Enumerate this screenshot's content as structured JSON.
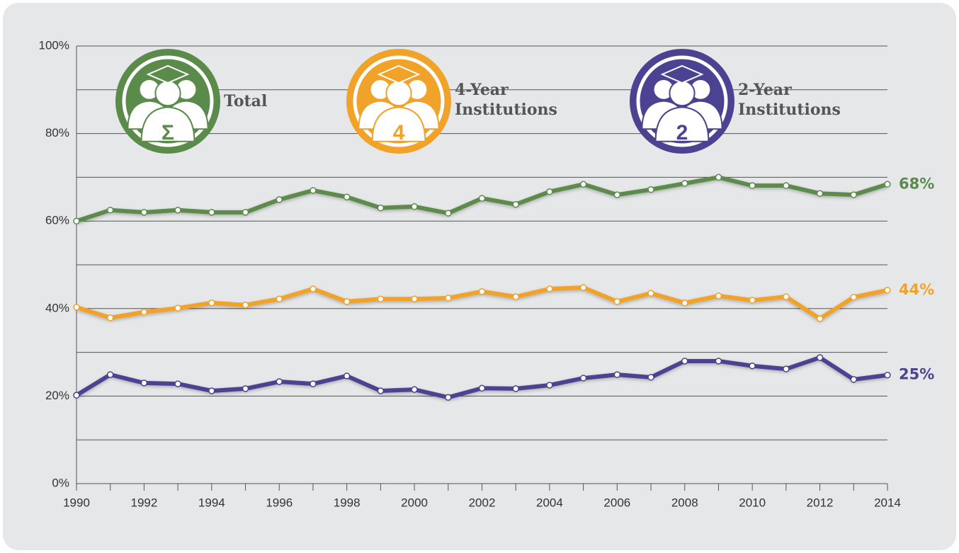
{
  "chart_data": {
    "type": "line",
    "x": [
      1990,
      1991,
      1992,
      1993,
      1994,
      1995,
      1996,
      1997,
      1998,
      1999,
      2000,
      2001,
      2002,
      2003,
      2004,
      2005,
      2006,
      2007,
      2008,
      2009,
      2010,
      2011,
      2012,
      2013,
      2014
    ],
    "series": [
      {
        "name": "Total",
        "icon_label": "Σ",
        "color": "#5b8b4b",
        "end_label": "68%",
        "values": [
          60.0,
          62.5,
          62.0,
          62.5,
          62.0,
          62.0,
          64.9,
          67.0,
          65.5,
          63.0,
          63.3,
          61.8,
          65.2,
          63.8,
          66.7,
          68.4,
          66.0,
          67.2,
          68.6,
          70.0,
          68.1,
          68.1,
          66.3,
          66.0,
          68.4
        ]
      },
      {
        "name": "4-Year Institutions",
        "icon_label": "4",
        "color": "#f0a229",
        "end_label": "44%",
        "values": [
          40.3,
          37.9,
          39.2,
          40.1,
          41.3,
          40.8,
          42.2,
          44.5,
          41.6,
          42.2,
          42.2,
          42.4,
          43.9,
          42.7,
          44.5,
          44.8,
          41.6,
          43.5,
          41.3,
          42.9,
          41.9,
          42.7,
          37.7,
          42.6,
          44.2
        ]
      },
      {
        "name": "2-Year Institutions",
        "icon_label": "2",
        "color": "#4b4391",
        "end_label": "25%",
        "values": [
          20.2,
          24.9,
          23.0,
          22.8,
          21.2,
          21.7,
          23.3,
          22.8,
          24.6,
          21.2,
          21.5,
          19.7,
          21.8,
          21.7,
          22.5,
          24.1,
          24.9,
          24.3,
          28.0,
          28.0,
          26.9,
          26.2,
          28.8,
          23.8,
          24.8
        ]
      }
    ],
    "xlim": [
      1990,
      2014
    ],
    "xticks": [
      1990,
      1992,
      1994,
      1996,
      1998,
      2000,
      2002,
      2004,
      2006,
      2008,
      2010,
      2012,
      2014
    ],
    "minor_xticks": [
      1991,
      1993,
      1995,
      1997,
      1999,
      2001,
      2003,
      2005,
      2007,
      2009,
      2011,
      2013
    ],
    "ylim": [
      0,
      100
    ],
    "yticks": [
      {
        "value": 0,
        "label": "0%"
      },
      {
        "value": 20,
        "label": "20%"
      },
      {
        "value": 40,
        "label": "40%"
      },
      {
        "value": 60,
        "label": "60%"
      },
      {
        "value": 80,
        "label": "80%"
      },
      {
        "value": 100,
        "label": "100%"
      }
    ],
    "minor_yticks": [
      10,
      30,
      50,
      70,
      90
    ],
    "grid": true
  }
}
